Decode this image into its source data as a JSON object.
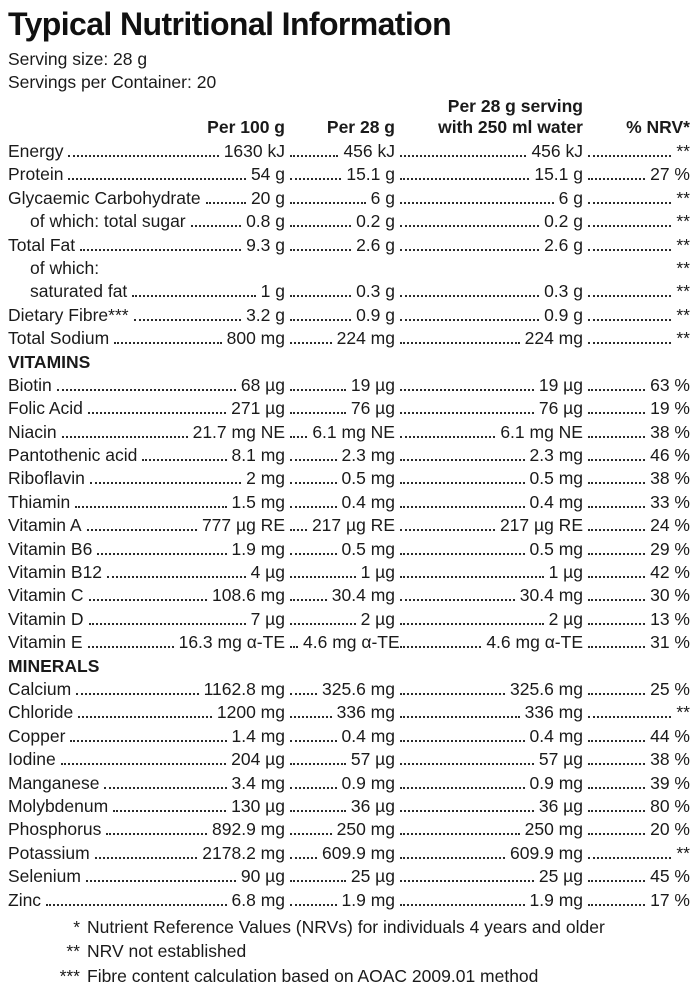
{
  "title": "Typical Nutritional Information",
  "serving_size": "Serving size: 28 g",
  "servings_per_container": "Servings per Container: 20",
  "columns": {
    "per_100g": "Per 100 g",
    "per_28g": "Per 28 g",
    "per_28g_water_line1": "Per 28 g serving",
    "per_28g_water_line2": "with 250 ml water",
    "nrv": "% NRV*"
  },
  "table": {
    "rows": [
      {
        "label": "Energy",
        "per_100g": "1630 kJ",
        "per_28g": "456 kJ",
        "per_28g_water": "456 kJ",
        "nrv": "**"
      },
      {
        "label": "Protein",
        "per_100g": "54 g",
        "per_28g": "15.1 g",
        "per_28g_water": "15.1 g",
        "nrv": "27 %"
      },
      {
        "label": "Glycaemic Carbohydrate",
        "per_100g": "20 g",
        "per_28g": "6 g",
        "per_28g_water": "6 g",
        "nrv": "**"
      },
      {
        "label": "of which: total sugar",
        "indent": true,
        "per_100g": "0.8 g",
        "per_28g": "0.2 g",
        "per_28g_water": "0.2 g",
        "nrv": "**"
      },
      {
        "label": "Total Fat",
        "per_100g": "9.3 g",
        "per_28g": "2.6 g",
        "per_28g_water": "2.6 g",
        "nrv": "**"
      },
      {
        "label": "of which:",
        "indent": true,
        "leaders": false,
        "per_100g": "",
        "per_28g": "",
        "per_28g_water": "",
        "nrv": "**"
      },
      {
        "label": "saturated fat",
        "indent": true,
        "per_100g": "1 g",
        "per_28g": "0.3 g",
        "per_28g_water": "0.3 g",
        "nrv": "**"
      },
      {
        "label": "Dietary Fibre***",
        "per_100g": "3.2 g",
        "per_28g": "0.9 g",
        "per_28g_water": "0.9 g",
        "nrv": "**"
      },
      {
        "label": "Total Sodium",
        "per_100g": "800 mg",
        "per_28g": "224 mg",
        "per_28g_water": "224 mg",
        "nrv": "**"
      },
      {
        "section": "VITAMINS"
      },
      {
        "label": "Biotin",
        "per_100g": "68 µg",
        "per_28g": "19 µg",
        "per_28g_water": "19 µg",
        "nrv": "63 %"
      },
      {
        "label": "Folic Acid",
        "per_100g": "271 µg",
        "per_28g": "76 µg",
        "per_28g_water": "76 µg",
        "nrv": "19 %"
      },
      {
        "label": "Niacin",
        "per_100g": "21.7 mg NE",
        "per_28g": "6.1 mg NE",
        "per_28g_water": "6.1 mg NE",
        "nrv": "38 %"
      },
      {
        "label": "Pantothenic acid",
        "per_100g": "8.1 mg",
        "per_28g": "2.3 mg",
        "per_28g_water": "2.3 mg",
        "nrv": "46 %"
      },
      {
        "label": "Riboflavin",
        "per_100g": "2 mg",
        "per_28g": "0.5 mg",
        "per_28g_water": "0.5 mg",
        "nrv": "38 %"
      },
      {
        "label": "Thiamin",
        "per_100g": "1.5 mg",
        "per_28g": "0.4 mg",
        "per_28g_water": "0.4 mg",
        "nrv": "33 %"
      },
      {
        "label": "Vitamin A",
        "per_100g": "777 µg RE",
        "per_28g": "217 µg RE",
        "per_28g_water": "217 µg RE",
        "nrv": "24 %"
      },
      {
        "label": "Vitamin B6",
        "per_100g": "1.9 mg",
        "per_28g": "0.5 mg",
        "per_28g_water": "0.5 mg",
        "nrv": "29 %"
      },
      {
        "label": "Vitamin B12",
        "per_100g": "4 µg",
        "per_28g": "1 µg",
        "per_28g_water": "1 µg",
        "nrv": "42 %"
      },
      {
        "label": "Vitamin C",
        "per_100g": "108.6 mg",
        "per_28g": "30.4 mg",
        "per_28g_water": "30.4 mg",
        "nrv": "30 %"
      },
      {
        "label": "Vitamin D",
        "per_100g": "7 µg",
        "per_28g": "2 µg",
        "per_28g_water": "2 µg",
        "nrv": "13 %"
      },
      {
        "label": "Vitamin E",
        "per_100g": "16.3 mg α-TE",
        "per_28g": "4.6 mg α-TE",
        "per_28g_water": "4.6 mg α-TE",
        "nrv": "31 %"
      },
      {
        "section": "MINERALS"
      },
      {
        "label": "Calcium",
        "per_100g": "1162.8 mg",
        "per_28g": "325.6 mg",
        "per_28g_water": "325.6 mg",
        "nrv": "25 %"
      },
      {
        "label": "Chloride",
        "per_100g": "1200 mg",
        "per_28g": "336 mg",
        "per_28g_water": "336 mg",
        "nrv": "**"
      },
      {
        "label": "Copper",
        "per_100g": "1.4 mg",
        "per_28g": "0.4 mg",
        "per_28g_water": "0.4 mg",
        "nrv": "44 %"
      },
      {
        "label": "Iodine",
        "per_100g": "204 µg",
        "per_28g": "57 µg",
        "per_28g_water": "57 µg",
        "nrv": "38 %"
      },
      {
        "label": "Manganese",
        "per_100g": "3.4 mg",
        "per_28g": "0.9 mg",
        "per_28g_water": "0.9 mg",
        "nrv": "39 %"
      },
      {
        "label": "Molybdenum",
        "per_100g": "130 µg",
        "per_28g": "36 µg",
        "per_28g_water": "36 µg",
        "nrv": "80 %"
      },
      {
        "label": "Phosphorus",
        "per_100g": "892.9 mg",
        "per_28g": "250 mg",
        "per_28g_water": "250 mg",
        "nrv": "20 %"
      },
      {
        "label": "Potassium",
        "per_100g": "2178.2 mg",
        "per_28g": "609.9 mg",
        "per_28g_water": "609.9 mg",
        "nrv": "**"
      },
      {
        "label": "Selenium",
        "per_100g": "90 µg",
        "per_28g": "25 µg",
        "per_28g_water": "25 µg",
        "nrv": "45 %"
      },
      {
        "label": "Zinc",
        "per_100g": "6.8 mg",
        "per_28g": "1.9 mg",
        "per_28g_water": "1.9 mg",
        "nrv": "17 %"
      }
    ]
  },
  "footnotes": [
    {
      "mark": "*",
      "text": "Nutrient Reference Values (NRVs) for individuals 4 years and older"
    },
    {
      "mark": "**",
      "text": "NRV not established"
    },
    {
      "mark": "***",
      "text": "Fibre content calculation based on AOAC 2009.01 method"
    }
  ],
  "colors": {
    "text": "#1a1a1a",
    "background": "#ffffff"
  }
}
